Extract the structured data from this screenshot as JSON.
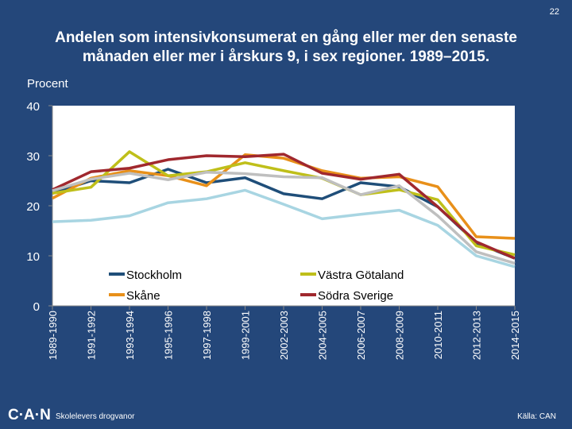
{
  "page_number": "22",
  "footer": {
    "logo": "C·A·N",
    "subtitle": "Skolelevers drogvanor",
    "source": "Källa: CAN"
  },
  "chart_data": {
    "type": "line",
    "title": "Andelen som intensivkonsumerat en gång eller mer den senaste månaden eller mer i årskurs 9, i sex regioner. 1989–2015.",
    "y_label": "Procent",
    "categories": [
      "1989-1990",
      "1991-1992",
      "1993-1994",
      "1995-1996",
      "1997-1998",
      "1999-2001",
      "2002-2003",
      "2004-2005",
      "2006-2007",
      "2008-2009",
      "2010-2011",
      "2012-2013",
      "2014-2015"
    ],
    "ylim": [
      0,
      40
    ],
    "yticks": [
      0,
      10,
      20,
      30,
      40
    ],
    "series": [
      {
        "name": "Stockholm",
        "color": "#1f4e79",
        "values": [
          22.5,
          25,
          24.6,
          27.3,
          24.6,
          25.6,
          22.4,
          21.4,
          24.6,
          23.8,
          19.8,
          12.6,
          9.5
        ]
      },
      {
        "name": "Skåne",
        "color": "#e8901a",
        "values": [
          21.5,
          25.5,
          27,
          26,
          24,
          30.2,
          29.5,
          27,
          25.5,
          25.8,
          23.8,
          13.8,
          13.5
        ]
      },
      {
        "name": "Västra Götaland",
        "color": "#bfbf1a",
        "values": [
          22.5,
          23.7,
          30.8,
          26,
          26.8,
          28.6,
          27,
          25.5,
          22.2,
          23.2,
          21.2,
          12,
          10.2
        ]
      },
      {
        "name": "Södra Sverige",
        "color": "#a0282e",
        "values": [
          23.2,
          26.8,
          27.5,
          29.2,
          30,
          29.8,
          30.3,
          26.5,
          25.3,
          26.3,
          19.8,
          12.8,
          9.5
        ]
      },
      {
        "color": "#a8d5e2",
        "values": [
          16.8,
          17.1,
          18,
          20.6,
          21.4,
          23.1,
          20.3,
          17.4,
          18.3,
          19.1,
          16.1,
          10,
          7.8
        ]
      },
      {
        "color": "#bfbfbf",
        "values": [
          23,
          25.3,
          26.5,
          25.2,
          26.7,
          26.4,
          25.8,
          25.6,
          22.2,
          24,
          18,
          10.8,
          8.5
        ]
      }
    ]
  }
}
